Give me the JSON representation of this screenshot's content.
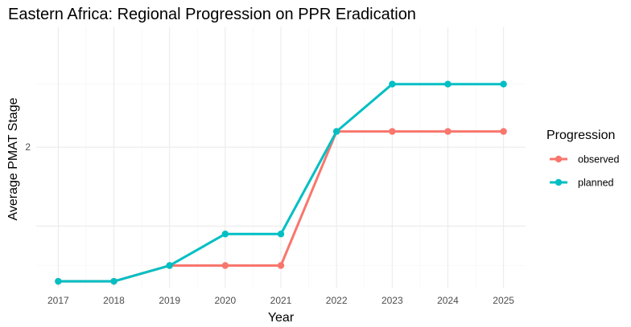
{
  "chart_data": {
    "type": "line",
    "title": "Eastern Africa: Regional Progression on PPR Eradication",
    "xlabel": "Year",
    "ylabel": "Average PMAT Stage",
    "x": [
      2017,
      2018,
      2019,
      2020,
      2021,
      2022,
      2023,
      2024,
      2025
    ],
    "x_ticks": [
      "2017",
      "2018",
      "2019",
      "2020",
      "2021",
      "2022",
      "2023",
      "2024",
      "2025"
    ],
    "y_ticks": [
      {
        "value": 2,
        "label": "2"
      }
    ],
    "ylim": [
      1.11,
      2.76
    ],
    "grid": true,
    "legend": {
      "title": "Progression",
      "position": "right"
    },
    "series": [
      {
        "name": "observed",
        "color": "#F8766D",
        "values": [
          1.15,
          1.15,
          1.25,
          1.25,
          1.25,
          2.1,
          2.1,
          2.1,
          2.1
        ]
      },
      {
        "name": "planned",
        "color": "#00BFC4",
        "values": [
          1.15,
          1.15,
          1.25,
          1.45,
          1.45,
          2.1,
          2.4,
          2.4,
          2.4
        ]
      }
    ]
  }
}
